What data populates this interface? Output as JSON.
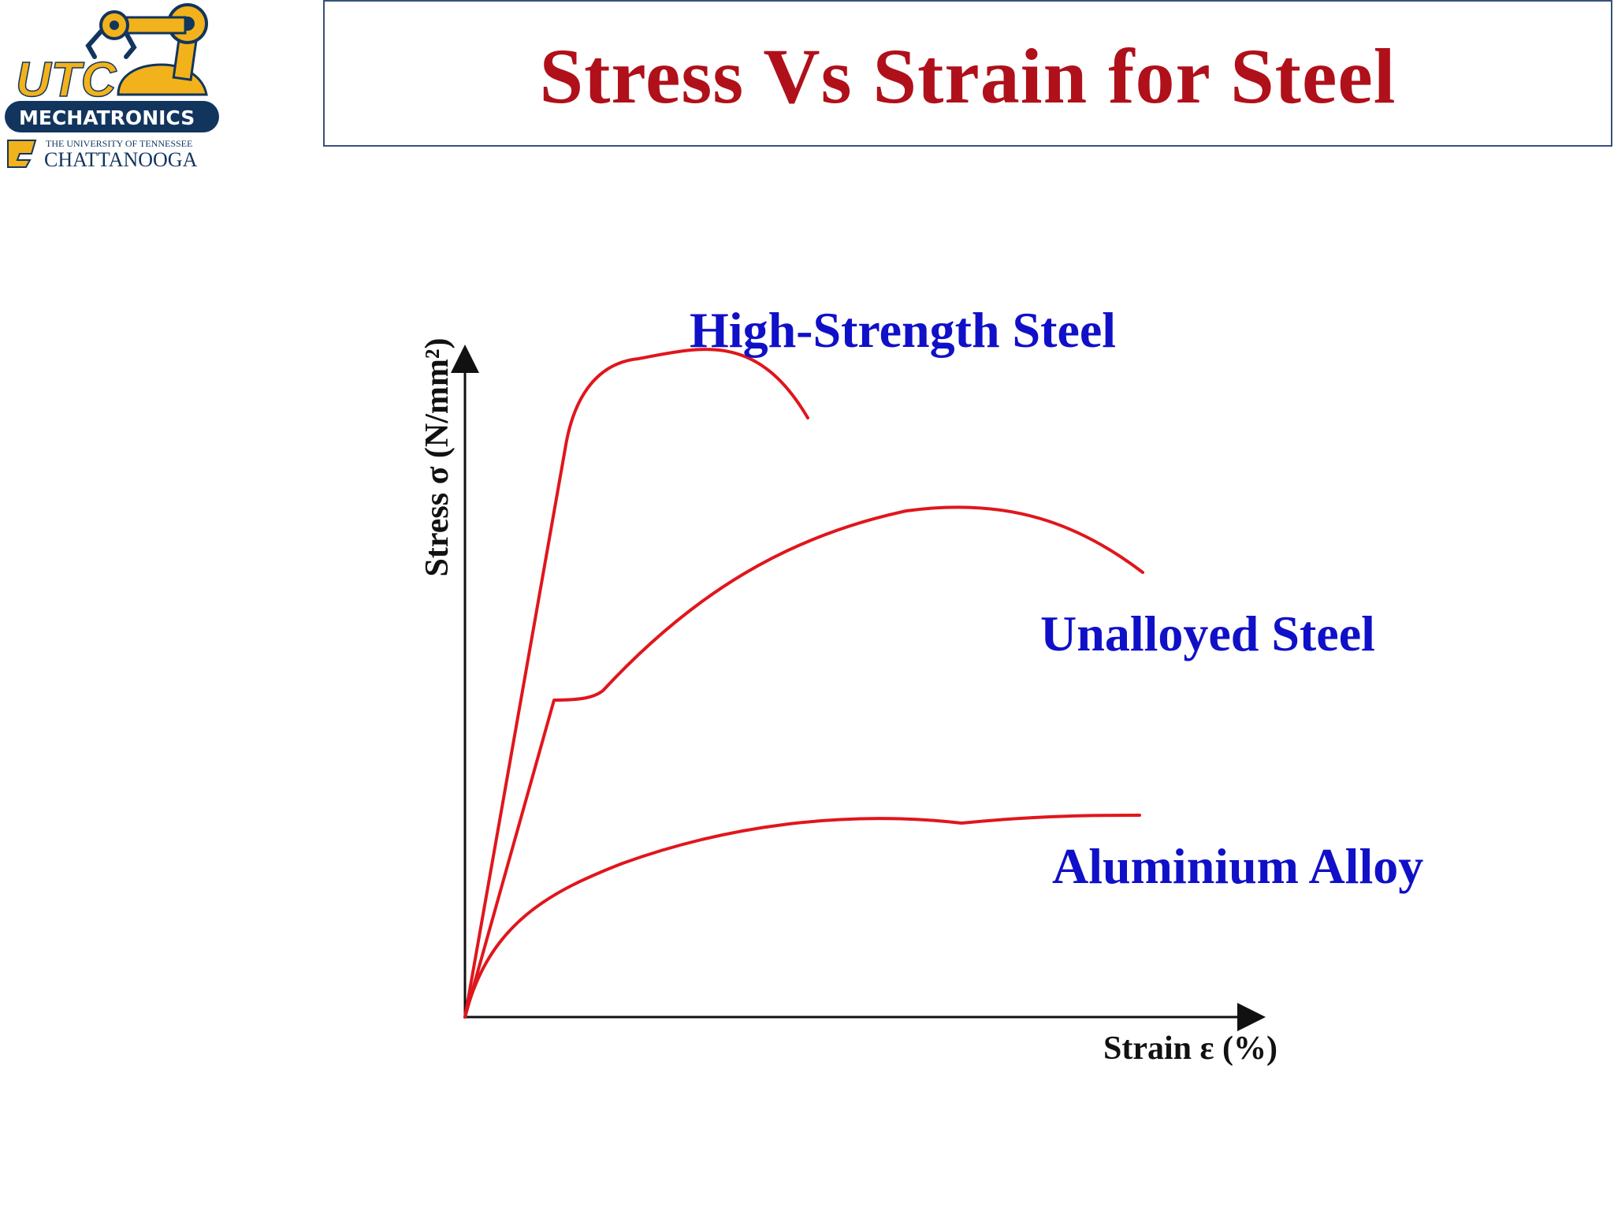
{
  "slide": {
    "title": "Stress Vs Strain for Steel"
  },
  "logo": {
    "text_utc": "UTC",
    "text_mechatronics": "MECHATRONICS",
    "text_university": "THE UNIVERSITY OF TENNESSEE",
    "text_city": "CHATTANOOGA"
  },
  "diagram": {
    "y_axis_label": "Stress σ (N/mm²)",
    "x_axis_label": "Strain ε (%)",
    "curves": [
      {
        "id": "high-strength",
        "label": "High-Strength Steel"
      },
      {
        "id": "unalloyed",
        "label": "Unalloyed Steel"
      },
      {
        "id": "aluminium",
        "label": "Aluminium Alloy"
      }
    ]
  },
  "colors": {
    "title": "#b0101a",
    "curve_stroke": "#e0161c",
    "curve_label": "#1010c8",
    "axis": "#111111",
    "title_border": "#36507a"
  }
}
